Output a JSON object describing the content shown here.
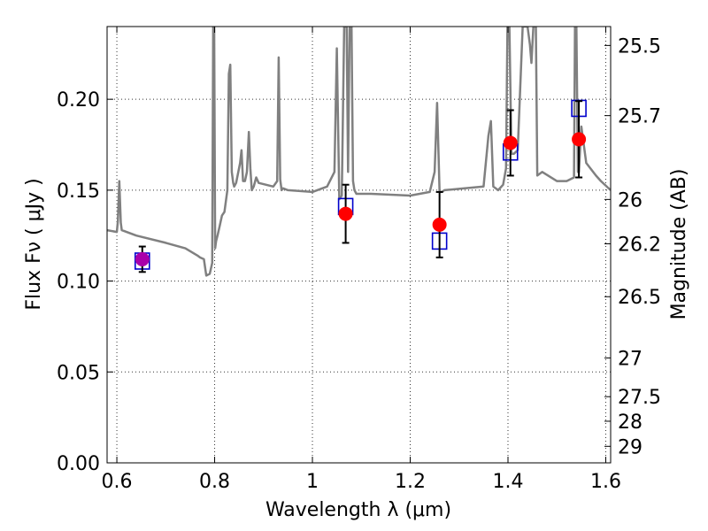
{
  "chart_data": {
    "type": "scatter",
    "xlabel": "Wavelength  λ (μm)",
    "ylabel": "Flux  Fν  ( μJy )",
    "ylabel_right": "Magnitude (AB)",
    "xlim": [
      0.58,
      1.61
    ],
    "ylim": [
      0.0,
      0.24
    ],
    "grid": true,
    "x_ticks": [
      0.6,
      0.8,
      1.0,
      1.2,
      1.4,
      1.6
    ],
    "x_tick_labels": [
      "0.6",
      "0.8",
      "1",
      "1.2",
      "1.4",
      "1.6"
    ],
    "y_ticks": [
      0.0,
      0.05,
      0.1,
      0.15,
      0.2
    ],
    "y_tick_labels": [
      "0.00",
      "0.05",
      "0.10",
      "0.15",
      "0.20"
    ],
    "right_ticks": [
      {
        "label": "25.5",
        "flux": 0.2296
      },
      {
        "label": "25.7",
        "flux": 0.191
      },
      {
        "label": "26",
        "flux": 0.1449
      },
      {
        "label": "26.2",
        "flux": 0.1205
      },
      {
        "label": "26.5",
        "flux": 0.0914
      },
      {
        "label": "27",
        "flux": 0.0577
      },
      {
        "label": "27.5",
        "flux": 0.0364
      },
      {
        "label": "28",
        "flux": 0.0229
      },
      {
        "label": "29",
        "flux": 0.0091
      }
    ],
    "series": [
      {
        "type": "line",
        "color": "#808080",
        "x": [
          0.58,
          0.6,
          0.602,
          0.605,
          0.608,
          0.61,
          0.64,
          0.7,
          0.74,
          0.765,
          0.77,
          0.778,
          0.783,
          0.79,
          0.795,
          0.797,
          0.799,
          0.801,
          0.803,
          0.806,
          0.81,
          0.815,
          0.82,
          0.826,
          0.829,
          0.832,
          0.835,
          0.838,
          0.84,
          0.844,
          0.852,
          0.855,
          0.858,
          0.862,
          0.866,
          0.87,
          0.873,
          0.876,
          0.88,
          0.885,
          0.89,
          0.92,
          0.928,
          0.931,
          0.934,
          0.937,
          0.94,
          0.95,
          1.0,
          1.03,
          1.045,
          1.05,
          1.055,
          1.06,
          1.065,
          1.07,
          1.073,
          1.076,
          1.08,
          1.083,
          1.086,
          1.09,
          1.12,
          1.2,
          1.24,
          1.25,
          1.255,
          1.26,
          1.265,
          1.27,
          1.35,
          1.36,
          1.365,
          1.37,
          1.38,
          1.39,
          1.396,
          1.399,
          1.403,
          1.407,
          1.412,
          1.42,
          1.43,
          1.44,
          1.445,
          1.448,
          1.452,
          1.457,
          1.46,
          1.47,
          1.5,
          1.52,
          1.535,
          1.537,
          1.54,
          1.543,
          1.545,
          1.55,
          1.56,
          1.58,
          1.59,
          1.61
        ],
        "y": [
          0.128,
          0.127,
          0.133,
          0.155,
          0.132,
          0.128,
          0.125,
          0.121,
          0.118,
          0.114,
          0.113,
          0.112,
          0.103,
          0.104,
          0.11,
          0.24,
          0.24,
          0.118,
          0.122,
          0.125,
          0.13,
          0.136,
          0.138,
          0.15,
          0.214,
          0.219,
          0.16,
          0.154,
          0.152,
          0.154,
          0.165,
          0.172,
          0.155,
          0.155,
          0.16,
          0.182,
          0.162,
          0.15,
          0.152,
          0.157,
          0.154,
          0.152,
          0.155,
          0.223,
          0.156,
          0.15,
          0.151,
          0.15,
          0.149,
          0.152,
          0.16,
          0.228,
          0.145,
          0.147,
          0.24,
          0.24,
          0.16,
          0.24,
          0.24,
          0.155,
          0.15,
          0.148,
          0.148,
          0.147,
          0.149,
          0.16,
          0.198,
          0.149,
          0.149,
          0.15,
          0.152,
          0.18,
          0.188,
          0.152,
          0.15,
          0.153,
          0.162,
          0.24,
          0.24,
          0.17,
          0.17,
          0.172,
          0.24,
          0.24,
          0.23,
          0.22,
          0.24,
          0.24,
          0.158,
          0.16,
          0.155,
          0.155,
          0.157,
          0.24,
          0.24,
          0.16,
          0.16,
          0.185,
          0.165,
          0.158,
          0.155,
          0.15
        ]
      },
      {
        "type": "square",
        "color": "#0000cc",
        "x": [
          0.652,
          1.068,
          1.26,
          1.405,
          1.545
        ],
        "y": [
          0.111,
          0.141,
          0.122,
          0.171,
          0.195
        ]
      },
      {
        "type": "point",
        "color": "#ff0000",
        "x": [
          1.068,
          1.26,
          1.405,
          1.545
        ],
        "y": [
          0.137,
          0.131,
          0.176,
          0.178
        ],
        "yerr": [
          0.016,
          0.018,
          0.018,
          0.021
        ]
      },
      {
        "type": "point",
        "color": "#aa00aa",
        "x": [
          0.652
        ],
        "y": [
          0.112
        ],
        "yerr": [
          0.007
        ]
      }
    ]
  }
}
